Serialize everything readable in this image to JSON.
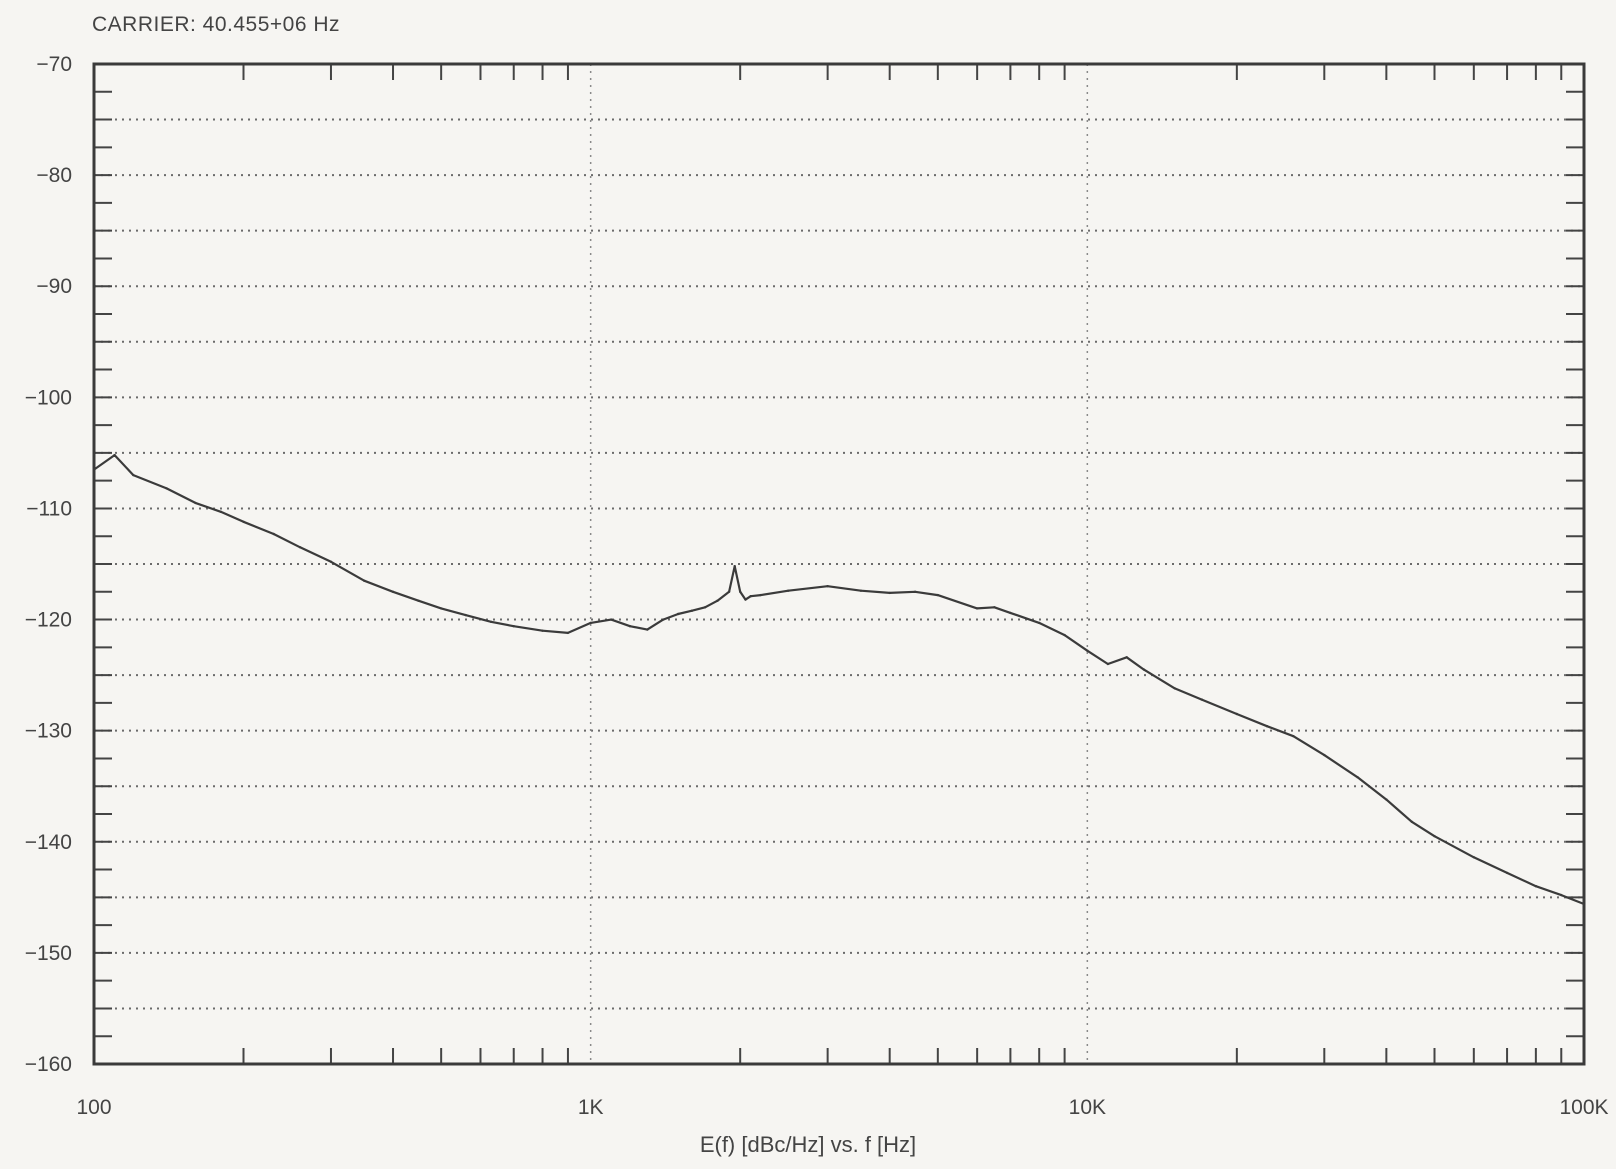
{
  "header": {
    "carrier": "CARRIER: 40.455+06 Hz"
  },
  "chart_data": {
    "type": "line",
    "title": "",
    "xlabel": "E(f) [dBc/Hz] vs. f [Hz]",
    "ylabel": "",
    "xscale": "log",
    "xlim": [
      100,
      100000
    ],
    "ylim": [
      -160,
      -70
    ],
    "grid": true,
    "line_color": "#3b3b3b",
    "x_ticks": [
      {
        "value": 100,
        "label": "100"
      },
      {
        "value": 1000,
        "label": "1K"
      },
      {
        "value": 10000,
        "label": "10K"
      },
      {
        "value": 100000,
        "label": "100K"
      }
    ],
    "y_ticks": [
      {
        "value": -70,
        "label": "−70"
      },
      {
        "value": -80,
        "label": "−80"
      },
      {
        "value": -90,
        "label": "−90"
      },
      {
        "value": -100,
        "label": "−100"
      },
      {
        "value": -110,
        "label": "−110"
      },
      {
        "value": -120,
        "label": "−120"
      },
      {
        "value": -130,
        "label": "−130"
      },
      {
        "value": -140,
        "label": "−140"
      },
      {
        "value": -150,
        "label": "−150"
      },
      {
        "value": -160,
        "label": "−160"
      }
    ],
    "series": [
      {
        "x": [
          100,
          110,
          120,
          140,
          160,
          180,
          200,
          230,
          260,
          300,
          350,
          400,
          450,
          500,
          560,
          630,
          700,
          800,
          900,
          1000,
          1100,
          1200,
          1300,
          1400,
          1500,
          1600,
          1700,
          1800,
          1900,
          1950,
          2000,
          2050,
          2100,
          2200,
          2500,
          3000,
          3500,
          4000,
          4500,
          5000,
          6000,
          6500,
          7000,
          8000,
          9000,
          10000,
          11000,
          12000,
          13000,
          15000,
          17000,
          20000,
          23000,
          26000,
          30000,
          35000,
          40000,
          45000,
          50000,
          60000,
          70000,
          80000,
          90000,
          100000
        ],
        "y": [
          -106.5,
          -105.2,
          -107.0,
          -108.2,
          -109.5,
          -110.3,
          -111.2,
          -112.3,
          -113.5,
          -114.8,
          -116.5,
          -117.5,
          -118.3,
          -119.0,
          -119.6,
          -120.2,
          -120.6,
          -121.0,
          -121.2,
          -120.3,
          -120.0,
          -120.6,
          -120.9,
          -120.0,
          -119.5,
          -119.2,
          -118.9,
          -118.3,
          -117.5,
          -115.2,
          -117.5,
          -118.2,
          -117.9,
          -117.8,
          -117.4,
          -117.0,
          -117.4,
          -117.6,
          -117.5,
          -117.8,
          -119.0,
          -118.9,
          -119.4,
          -120.3,
          -121.4,
          -122.8,
          -124.0,
          -123.4,
          -124.5,
          -126.2,
          -127.2,
          -128.5,
          -129.6,
          -130.5,
          -132.2,
          -134.2,
          -136.2,
          -138.2,
          -139.5,
          -141.4,
          -142.8,
          -144.0,
          -144.8,
          -145.6
        ]
      }
    ]
  }
}
